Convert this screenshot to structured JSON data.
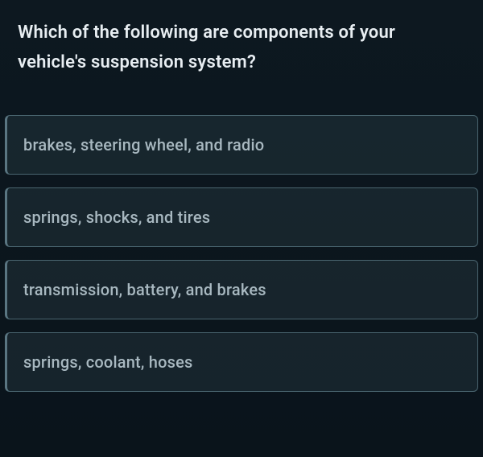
{
  "question": {
    "text": "Which of the following are components of your vehicle's suspension system?"
  },
  "options": [
    {
      "label": "brakes, steering wheel, and radio"
    },
    {
      "label": "springs, shocks, and tires"
    },
    {
      "label": "transmission, battery, and brakes"
    },
    {
      "label": "springs, coolant, hoses"
    }
  ],
  "colors": {
    "background_top": "#0d1820",
    "background_bottom": "#0a141b",
    "question_text": "#e8eef2",
    "option_bg": "rgba(45,65,75,0.35)",
    "option_border": "#4a6570",
    "option_border_left": "#5a7682",
    "option_text": "#a8b8c0"
  },
  "typography": {
    "question_fontsize": 22,
    "question_fontweight": 600,
    "option_fontsize": 20,
    "option_fontweight": 500
  }
}
